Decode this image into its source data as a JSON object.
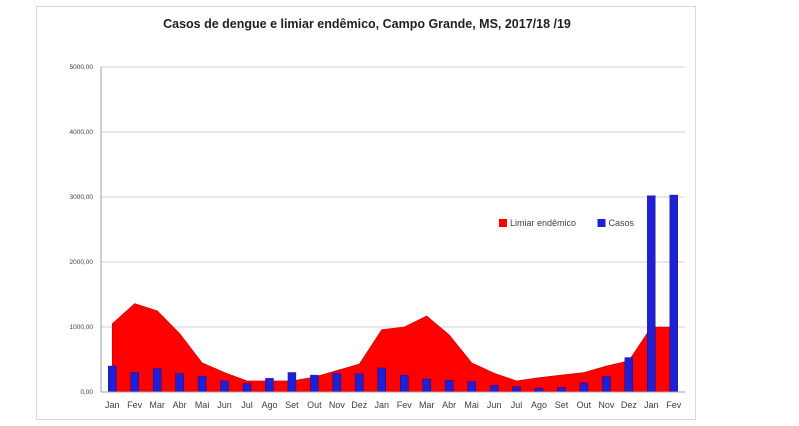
{
  "chart_data": {
    "type": "bar",
    "title": "Casos de dengue e limiar endêmico, Campo Grande, MS, 2017/18 /19",
    "xlabel": "",
    "ylabel": "",
    "ylim": [
      0,
      5000
    ],
    "yticks": [
      "0,00",
      "1000,00",
      "2000,00",
      "3000,00",
      "4000,00",
      "5000,00"
    ],
    "grid": true,
    "legend_position": "right",
    "categories": [
      "Jan",
      "Fev",
      "Mar",
      "Abr",
      "Mai",
      "Jun",
      "Jul",
      "Ago",
      "Set",
      "Out",
      "Nov",
      "Dez",
      "Jan",
      "Fev",
      "Mar",
      "Abr",
      "Mai",
      "Jun",
      "Jul",
      "Ago",
      "Set",
      "Out",
      "Nov",
      "Dez",
      "Jan",
      "Fev"
    ],
    "series": [
      {
        "name": "Limiar endêmico",
        "kind": "area",
        "color": "#ff0000",
        "values": [
          1050,
          1360,
          1250,
          900,
          450,
          300,
          170,
          170,
          170,
          230,
          330,
          430,
          960,
          1000,
          1170,
          880,
          450,
          290,
          170,
          220,
          260,
          300,
          400,
          480,
          1000,
          1000
        ]
      },
      {
        "name": "Casos",
        "kind": "bar",
        "color": "#1f1fd6",
        "values": [
          400,
          300,
          360,
          280,
          240,
          170,
          130,
          210,
          300,
          260,
          290,
          280,
          370,
          260,
          200,
          180,
          160,
          100,
          80,
          60,
          70,
          140,
          240,
          530,
          3020,
          3030
        ]
      }
    ]
  }
}
